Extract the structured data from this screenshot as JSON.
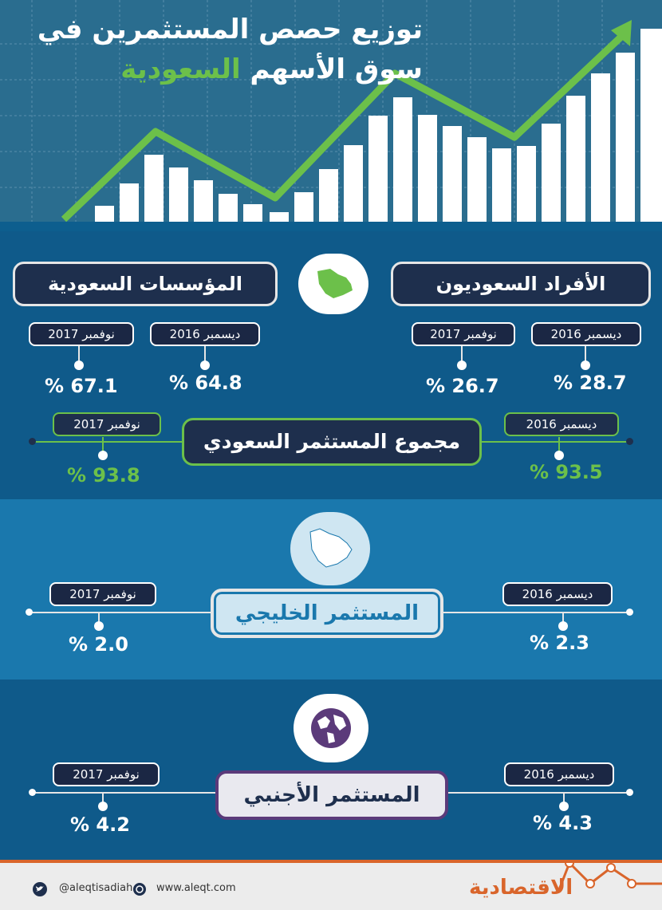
{
  "header": {
    "title_line1": "توزيع حصص المستثمرين في",
    "title_line2_a": "سوق الأسهم",
    "title_line2_b": "السعودية"
  },
  "saudi": {
    "institutions_label": "المؤسسات السعودية",
    "individuals_label": "الأفراد السعوديون",
    "institutions": {
      "nov2017_label": "نوفمبر 2017",
      "dec2016_label": "ديسمبر 2016",
      "nov2017_value": "% 67.1",
      "dec2016_value": "% 64.8"
    },
    "individuals": {
      "nov2017_label": "نوفمبر 2017",
      "dec2016_label": "ديسمبر 2016",
      "nov2017_value": "% 26.7",
      "dec2016_value": "% 28.7"
    },
    "total_label": "مجموع المستثمر السعودي",
    "total_nov2017_label": "نوفمبر 2017",
    "total_dec2016_label": "ديسمبر 2016",
    "total_nov2017_value": "% 93.8",
    "total_dec2016_value": "% 93.5"
  },
  "gulf": {
    "label": "المستثمر الخليجي",
    "nov2017_label": "نوفمبر 2017",
    "dec2016_label": "ديسمبر 2016",
    "nov2017_value": "% 2.0",
    "dec2016_value": "% 2.3"
  },
  "foreign": {
    "label": "المستثمر الأجنبي",
    "nov2017_label": "نوفمبر 2017",
    "dec2016_label": "ديسمبر 2016",
    "nov2017_value": "% 4.2",
    "dec2016_value": "% 4.3"
  },
  "footer": {
    "twitter": "@aleqtisadiah",
    "website": "www.aleqt.com",
    "logo": "الاقتصادية"
  },
  "colors": {
    "accent_green": "#6cc04a",
    "dark_navy": "#1e2f4d",
    "orange": "#d9652b"
  }
}
